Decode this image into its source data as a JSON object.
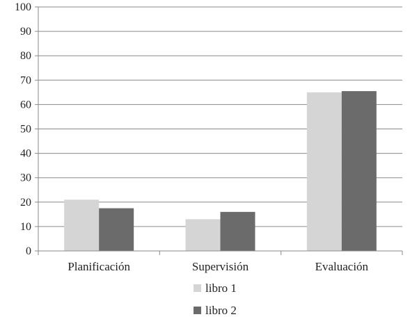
{
  "chart_data": {
    "type": "bar",
    "categories": [
      "Planificación",
      "Supervisión",
      "Evaluación"
    ],
    "series": [
      {
        "name": "libro 1",
        "values": [
          21,
          13,
          65
        ],
        "color": "#d5d5d5"
      },
      {
        "name": "libro 2",
        "values": [
          17.5,
          16,
          65.5
        ],
        "color": "#6b6b6b"
      }
    ],
    "ylim": [
      0,
      100
    ],
    "yticks": [
      0,
      10,
      20,
      30,
      40,
      50,
      60,
      70,
      80,
      90,
      100
    ],
    "grid": true,
    "legend_position": "bottom"
  }
}
